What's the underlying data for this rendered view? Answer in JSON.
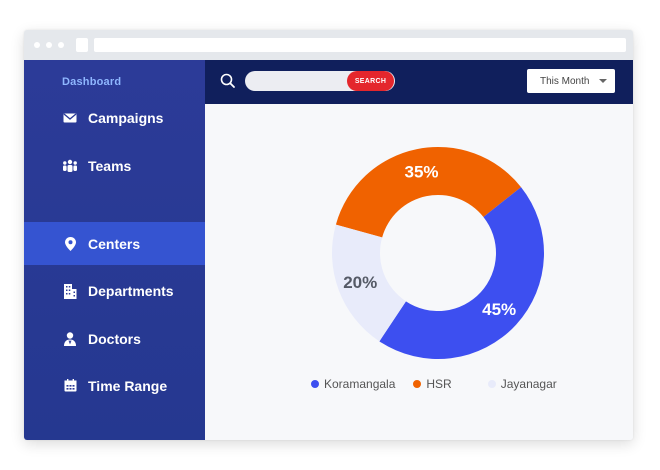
{
  "sidebar": {
    "header": "Dashboard",
    "items": [
      {
        "label": "Campaigns",
        "icon": "envelope-icon"
      },
      {
        "label": "Teams",
        "icon": "team-icon"
      },
      {
        "label": "Centers",
        "icon": "location-pin-icon",
        "active": true
      },
      {
        "label": "Departments",
        "icon": "building-icon"
      },
      {
        "label": "Doctors",
        "icon": "doctor-icon"
      },
      {
        "label": "Time Range",
        "icon": "calendar-icon"
      }
    ]
  },
  "topbar": {
    "search_placeholder": "",
    "search_button": "SEARCH",
    "period_select": "This Month"
  },
  "colors": {
    "sidebar": "#2c3b98",
    "active_item": "#3554d1",
    "topbar": "#101f5c",
    "search_button": "#e4262c"
  },
  "chart_data": {
    "type": "pie",
    "variant": "donut",
    "legend_position": "bottom",
    "series": [
      {
        "name": "Koramangala",
        "value": 45,
        "label": "45%",
        "color": "#3d4ff0"
      },
      {
        "name": "HSR",
        "value": 35,
        "label": "35%",
        "color": "#f06200"
      },
      {
        "name": "Jayanagar",
        "value": 20,
        "label": "20%",
        "color": "#e8ebfa"
      }
    ]
  }
}
